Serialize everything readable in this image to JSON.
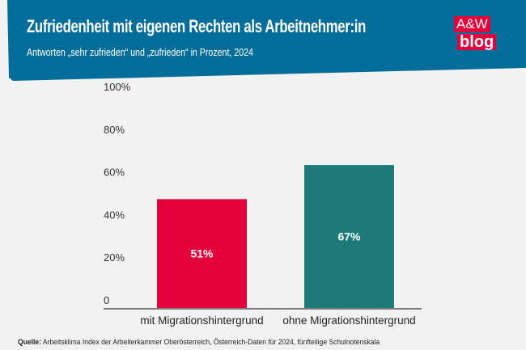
{
  "header": {
    "title": "Zufriedenheit mit eigenen Rechten als Arbeitnehmer:in",
    "subtitle": "Antworten „sehr zufrieden“ und „zufrieden“ in Prozent, 2024",
    "logo_line1": "A&W",
    "logo_line2": "blog",
    "color": "#036d99",
    "logo_color": "#e4003a"
  },
  "chart_data": {
    "type": "bar",
    "categories": [
      "mit Migrationshintergrund",
      "ohne Migrationshintergrund"
    ],
    "values": [
      51,
      67
    ],
    "data_labels": [
      "51%",
      "67%"
    ],
    "colors": [
      "#e4003a",
      "#1c7b78"
    ],
    "ylim": [
      0,
      100
    ],
    "yticks": [
      "0",
      "20%",
      "40%",
      "60%",
      "80%",
      "100%"
    ],
    "grid": false
  },
  "footer": {
    "source_label": "Quelle:",
    "source_text": "Arbeitsklima Index der Arbeiterkammer Oberösterreich, Österreich-Daten für 2024, fünfteilige Schulnotenskala"
  }
}
